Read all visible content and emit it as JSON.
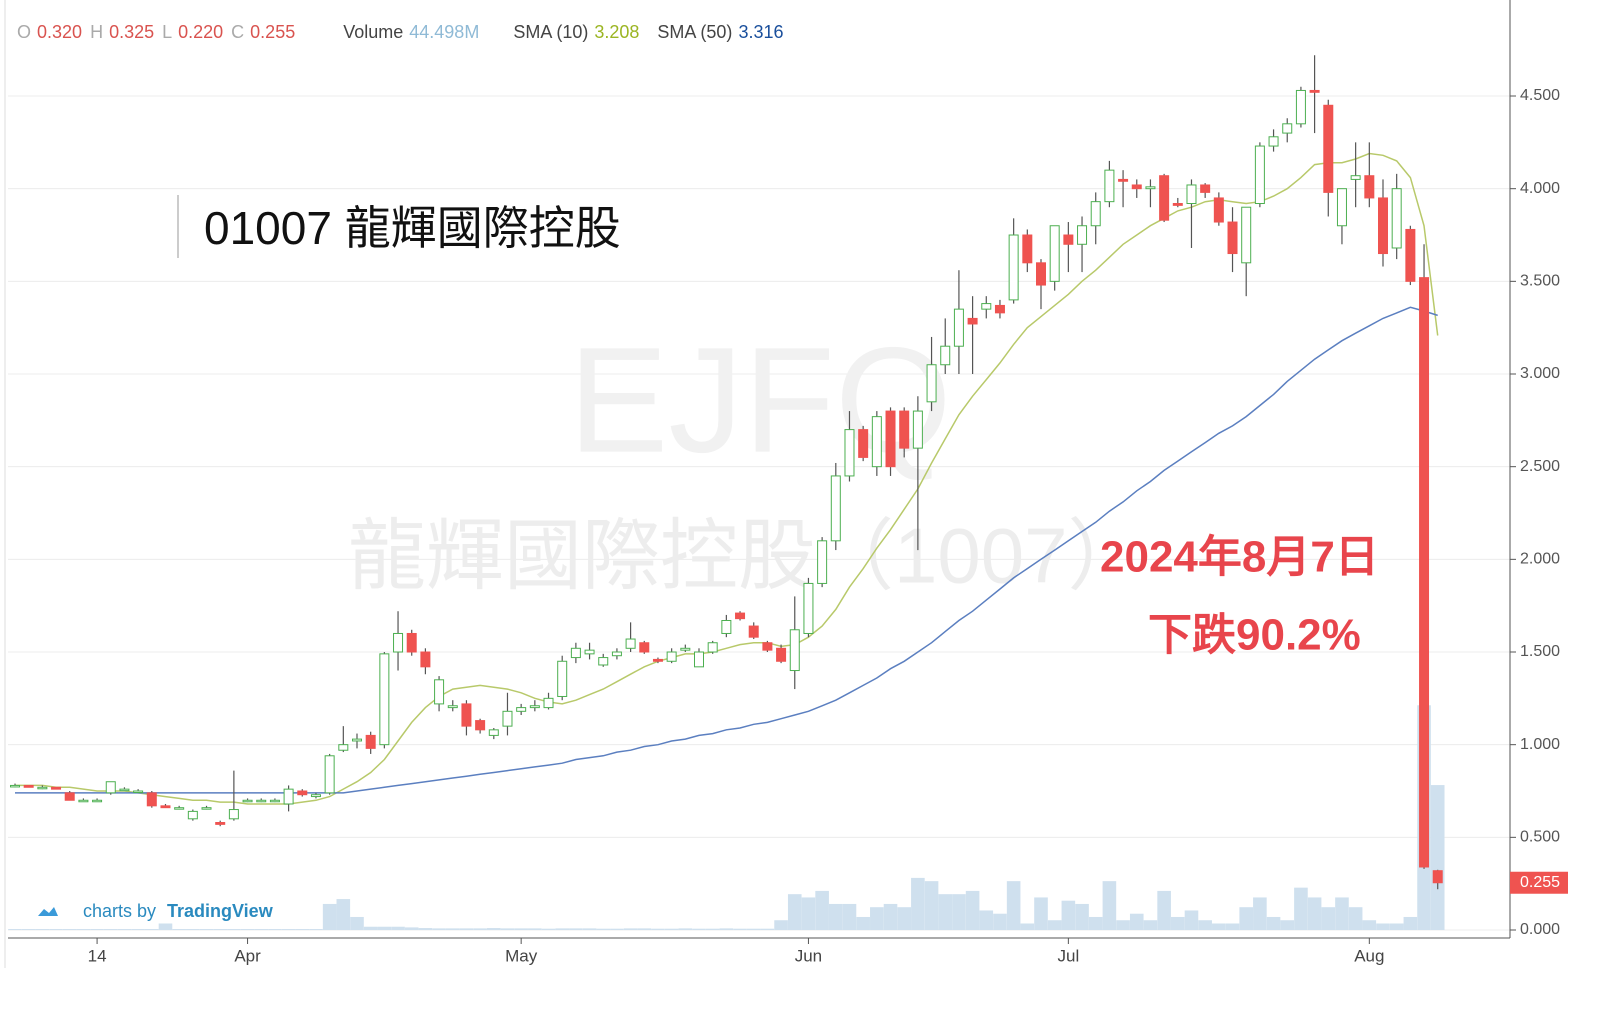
{
  "chart_data": {
    "type": "candlestick",
    "title": "01007 龍輝國際控股",
    "watermark": "EJFQ",
    "watermark_sub": "龍輝國際控股（1007）",
    "annotations": [
      "2024年8月7日",
      "下跌90.2%"
    ],
    "credit": {
      "prefix": "charts by",
      "brand": "TradingView"
    },
    "header": [
      {
        "label": "O",
        "value": "0.320"
      },
      {
        "label": "H",
        "value": "0.325"
      },
      {
        "label": "L",
        "value": "0.220"
      },
      {
        "label": "C",
        "value": "0.255"
      }
    ],
    "categories": [
      null,
      null,
      null,
      null,
      null,
      null,
      "14",
      null,
      null,
      null,
      null,
      null,
      null,
      null,
      null,
      null,
      null,
      "Apr",
      null,
      null,
      null,
      null,
      null,
      null,
      null,
      null,
      null,
      null,
      null,
      null,
      null,
      null,
      null,
      null,
      null,
      null,
      null,
      "May",
      null,
      null,
      null,
      null,
      null,
      null,
      null,
      null,
      null,
      null,
      null,
      null,
      null,
      null,
      null,
      null,
      null,
      null,
      null,
      null,
      "Jun",
      null,
      null,
      null,
      null,
      null,
      null,
      null,
      null,
      null,
      null,
      null,
      null,
      null,
      null,
      null,
      null,
      null,
      null,
      "Jul",
      null,
      null,
      null,
      null,
      null,
      null,
      null,
      null,
      null,
      null,
      null,
      null,
      null,
      null,
      null,
      null,
      null,
      null,
      null,
      null,
      null,
      "Aug",
      null,
      null,
      null,
      null,
      null
    ],
    "open": [
      0.78,
      0.78,
      0.77,
      0.77,
      0.74,
      0.7,
      0.7,
      0.74,
      0.76,
      0.75,
      0.74,
      0.67,
      0.66,
      0.6,
      0.66,
      0.58,
      0.6,
      0.7,
      0.7,
      0.7,
      0.68,
      0.75,
      0.72,
      0.74,
      0.97,
      1.02,
      1.05,
      1.0,
      1.5,
      1.6,
      1.5,
      1.22,
      1.2,
      1.22,
      1.13,
      1.05,
      1.1,
      1.18,
      1.2,
      1.2,
      1.26,
      1.47,
      1.49,
      1.43,
      1.48,
      1.52,
      1.55,
      1.46,
      1.45,
      1.51,
      1.42,
      1.5,
      1.6,
      1.71,
      1.64,
      1.55,
      1.52,
      1.4,
      1.6,
      1.87,
      2.1,
      2.45,
      2.7,
      2.5,
      2.8,
      2.8,
      2.6,
      2.85,
      3.05,
      3.15,
      3.3,
      3.35,
      3.37,
      3.4,
      3.75,
      3.6,
      3.5,
      3.75,
      3.7,
      3.8,
      3.93,
      4.05,
      4.02,
      4.0,
      4.07,
      3.92,
      3.92,
      4.02,
      3.95,
      3.82,
      3.6,
      3.92,
      4.23,
      4.3,
      4.35,
      4.53,
      4.45,
      3.8,
      4.05,
      4.07,
      3.95,
      3.68,
      3.78,
      3.52,
      0.32
    ],
    "high": [
      0.79,
      0.78,
      0.78,
      0.77,
      0.75,
      0.71,
      0.71,
      0.8,
      0.77,
      0.76,
      0.75,
      0.68,
      0.67,
      0.65,
      0.67,
      0.59,
      0.86,
      0.71,
      0.71,
      0.71,
      0.78,
      0.76,
      0.74,
      0.95,
      1.1,
      1.06,
      1.07,
      1.5,
      1.72,
      1.62,
      1.52,
      1.37,
      1.24,
      1.24,
      1.14,
      1.09,
      1.28,
      1.22,
      1.24,
      1.28,
      1.48,
      1.55,
      1.55,
      1.49,
      1.52,
      1.66,
      1.56,
      1.47,
      1.52,
      1.54,
      1.52,
      1.56,
      1.7,
      1.72,
      1.66,
      1.56,
      1.54,
      1.8,
      1.9,
      2.12,
      2.52,
      2.8,
      2.72,
      2.8,
      2.82,
      2.82,
      2.88,
      3.2,
      3.3,
      3.56,
      3.42,
      3.42,
      3.4,
      3.84,
      3.78,
      3.62,
      3.8,
      3.82,
      3.85,
      3.98,
      4.15,
      4.1,
      4.05,
      4.05,
      4.08,
      3.95,
      4.05,
      4.03,
      3.98,
      3.9,
      3.9,
      4.25,
      4.32,
      4.38,
      4.55,
      4.72,
      4.48,
      4.0,
      4.25,
      4.25,
      4.05,
      4.08,
      3.8,
      3.7,
      0.325
    ],
    "low": [
      0.77,
      0.77,
      0.76,
      0.76,
      0.7,
      0.7,
      0.7,
      0.73,
      0.75,
      0.74,
      0.66,
      0.66,
      0.65,
      0.59,
      0.65,
      0.56,
      0.59,
      0.69,
      0.69,
      0.69,
      0.64,
      0.72,
      0.71,
      0.73,
      0.96,
      0.98,
      0.95,
      0.98,
      1.4,
      1.48,
      1.38,
      1.18,
      1.18,
      1.05,
      1.06,
      1.03,
      1.05,
      1.16,
      1.18,
      1.19,
      1.24,
      1.44,
      1.46,
      1.42,
      1.46,
      1.5,
      1.49,
      1.44,
      1.44,
      1.5,
      1.42,
      1.49,
      1.58,
      1.67,
      1.57,
      1.5,
      1.44,
      1.3,
      1.58,
      1.85,
      2.05,
      2.42,
      2.53,
      2.45,
      2.45,
      2.55,
      2.05,
      2.8,
      3.0,
      3.0,
      3.0,
      3.3,
      3.3,
      3.38,
      3.55,
      3.35,
      3.45,
      3.55,
      3.55,
      3.7,
      3.9,
      3.9,
      3.95,
      3.9,
      3.82,
      3.9,
      3.68,
      3.95,
      3.8,
      3.55,
      3.42,
      3.9,
      4.2,
      4.25,
      4.33,
      4.3,
      3.85,
      3.7,
      3.9,
      3.9,
      3.58,
      3.62,
      3.48,
      0.33,
      0.22
    ],
    "close": [
      0.78,
      0.77,
      0.77,
      0.76,
      0.7,
      0.7,
      0.7,
      0.8,
      0.76,
      0.75,
      0.67,
      0.66,
      0.66,
      0.64,
      0.66,
      0.57,
      0.65,
      0.7,
      0.7,
      0.7,
      0.76,
      0.73,
      0.73,
      0.94,
      1.0,
      1.03,
      0.98,
      1.49,
      1.6,
      1.5,
      1.42,
      1.35,
      1.21,
      1.1,
      1.08,
      1.08,
      1.18,
      1.2,
      1.21,
      1.25,
      1.45,
      1.52,
      1.51,
      1.47,
      1.5,
      1.57,
      1.5,
      1.45,
      1.5,
      1.52,
      1.5,
      1.55,
      1.67,
      1.68,
      1.58,
      1.51,
      1.45,
      1.62,
      1.87,
      2.1,
      2.45,
      2.7,
      2.55,
      2.77,
      2.5,
      2.6,
      2.8,
      3.05,
      3.15,
      3.35,
      3.27,
      3.38,
      3.33,
      3.75,
      3.6,
      3.48,
      3.8,
      3.7,
      3.8,
      3.93,
      4.1,
      4.04,
      4.0,
      4.01,
      3.83,
      3.91,
      4.02,
      3.98,
      3.82,
      3.65,
      3.9,
      4.23,
      4.28,
      4.35,
      4.53,
      4.52,
      3.98,
      4.0,
      4.07,
      3.95,
      3.65,
      4.0,
      3.5,
      0.34,
      0.255
    ],
    "up_color": "#4caf50",
    "down_color": "#ef5350",
    "wick_color": "#555555",
    "volume": {
      "name": "Volume",
      "value_label": "44.498M",
      "color": "#cfe0ee",
      "axis": "y2",
      "values": [
        0.3,
        0.3,
        0.3,
        0.3,
        0.3,
        0.3,
        0.3,
        0.3,
        0.3,
        0.3,
        0.3,
        2,
        0.3,
        0.3,
        0.3,
        0.3,
        0.3,
        0.3,
        0.3,
        0.3,
        0.3,
        0.3,
        0.3,
        8,
        9.5,
        4,
        1,
        1,
        1,
        0.8,
        0.6,
        0.5,
        0.5,
        0.5,
        0.5,
        0.6,
        0.5,
        0.5,
        0.5,
        0.4,
        0.5,
        0.5,
        0.5,
        0.4,
        0.4,
        0.5,
        0.5,
        0.4,
        0.4,
        0.5,
        0.4,
        0.4,
        0.5,
        0.4,
        0.4,
        0.4,
        3,
        11,
        10,
        12,
        8,
        8,
        4,
        7,
        8,
        7,
        16,
        15,
        11,
        11,
        12,
        6,
        5,
        15,
        2,
        10,
        3,
        9,
        8,
        4,
        15,
        3,
        5,
        3,
        12,
        4,
        6,
        3,
        2,
        2,
        7,
        10,
        4,
        3,
        13,
        10,
        7,
        10,
        7,
        3,
        2,
        2,
        4,
        69,
        44.498
      ]
    },
    "sma": [
      {
        "name": "SMA (10)",
        "value_label": "3.208",
        "color": "#b8c96a",
        "label_color": "#9bb523",
        "values": [
          0.78,
          0.78,
          0.78,
          0.77,
          0.77,
          0.76,
          0.75,
          0.75,
          0.75,
          0.74,
          0.73,
          0.72,
          0.71,
          0.7,
          0.7,
          0.69,
          0.69,
          0.68,
          0.68,
          0.68,
          0.68,
          0.69,
          0.7,
          0.72,
          0.76,
          0.8,
          0.85,
          0.92,
          1.02,
          1.12,
          1.2,
          1.26,
          1.3,
          1.31,
          1.32,
          1.31,
          1.3,
          1.28,
          1.25,
          1.23,
          1.22,
          1.24,
          1.27,
          1.3,
          1.34,
          1.38,
          1.42,
          1.45,
          1.47,
          1.49,
          1.49,
          1.5,
          1.52,
          1.54,
          1.55,
          1.55,
          1.53,
          1.54,
          1.58,
          1.64,
          1.73,
          1.85,
          1.95,
          2.06,
          2.16,
          2.27,
          2.38,
          2.52,
          2.65,
          2.78,
          2.88,
          2.97,
          3.06,
          3.16,
          3.25,
          3.31,
          3.37,
          3.43,
          3.5,
          3.56,
          3.63,
          3.7,
          3.75,
          3.8,
          3.84,
          3.88,
          3.9,
          3.93,
          3.94,
          3.93,
          3.92,
          3.93,
          3.96,
          4.0,
          4.06,
          4.13,
          4.14,
          4.14,
          4.16,
          4.19,
          4.18,
          4.15,
          4.06,
          3.8,
          3.208
        ]
      },
      {
        "name": "SMA (50)",
        "value_label": "3.316",
        "color": "#5b7fc0",
        "label_color": "#1a4f9c",
        "values": [
          0.74,
          0.74,
          0.74,
          0.74,
          0.74,
          0.74,
          0.74,
          0.74,
          0.74,
          0.74,
          0.74,
          0.74,
          0.74,
          0.74,
          0.74,
          0.74,
          0.74,
          0.74,
          0.74,
          0.74,
          0.74,
          0.74,
          0.74,
          0.74,
          0.74,
          0.75,
          0.76,
          0.77,
          0.78,
          0.79,
          0.8,
          0.81,
          0.82,
          0.83,
          0.84,
          0.85,
          0.86,
          0.87,
          0.88,
          0.89,
          0.9,
          0.92,
          0.93,
          0.94,
          0.96,
          0.97,
          0.99,
          1.0,
          1.02,
          1.03,
          1.05,
          1.06,
          1.08,
          1.09,
          1.11,
          1.12,
          1.14,
          1.16,
          1.18,
          1.21,
          1.24,
          1.28,
          1.32,
          1.36,
          1.41,
          1.45,
          1.5,
          1.55,
          1.61,
          1.67,
          1.72,
          1.78,
          1.84,
          1.9,
          1.95,
          2.0,
          2.05,
          2.1,
          2.15,
          2.2,
          2.26,
          2.31,
          2.37,
          2.42,
          2.48,
          2.53,
          2.58,
          2.63,
          2.68,
          2.72,
          2.77,
          2.83,
          2.89,
          2.96,
          3.02,
          3.08,
          3.13,
          3.18,
          3.22,
          3.26,
          3.3,
          3.33,
          3.36,
          3.34,
          3.316
        ]
      }
    ],
    "ylim": [
      0,
      5
    ],
    "y2lim": [
      0,
      140
    ],
    "yticks": [
      {
        "value": 0,
        "label": "0.000"
      },
      {
        "value": 0.5,
        "label": "0.500"
      },
      {
        "value": 1,
        "label": "1.000"
      },
      {
        "value": 1.5,
        "label": "1.500"
      },
      {
        "value": 2,
        "label": "2.000"
      },
      {
        "value": 2.5,
        "label": "2.500"
      },
      {
        "value": 3,
        "label": "3.000"
      },
      {
        "value": 3.5,
        "label": "3.500"
      },
      {
        "value": 4,
        "label": "4.000"
      },
      {
        "value": 4.5,
        "label": "4.500"
      }
    ],
    "last_price": {
      "value": 0.255,
      "label": "0.255",
      "color": "#ef5350"
    },
    "grid": true
  }
}
